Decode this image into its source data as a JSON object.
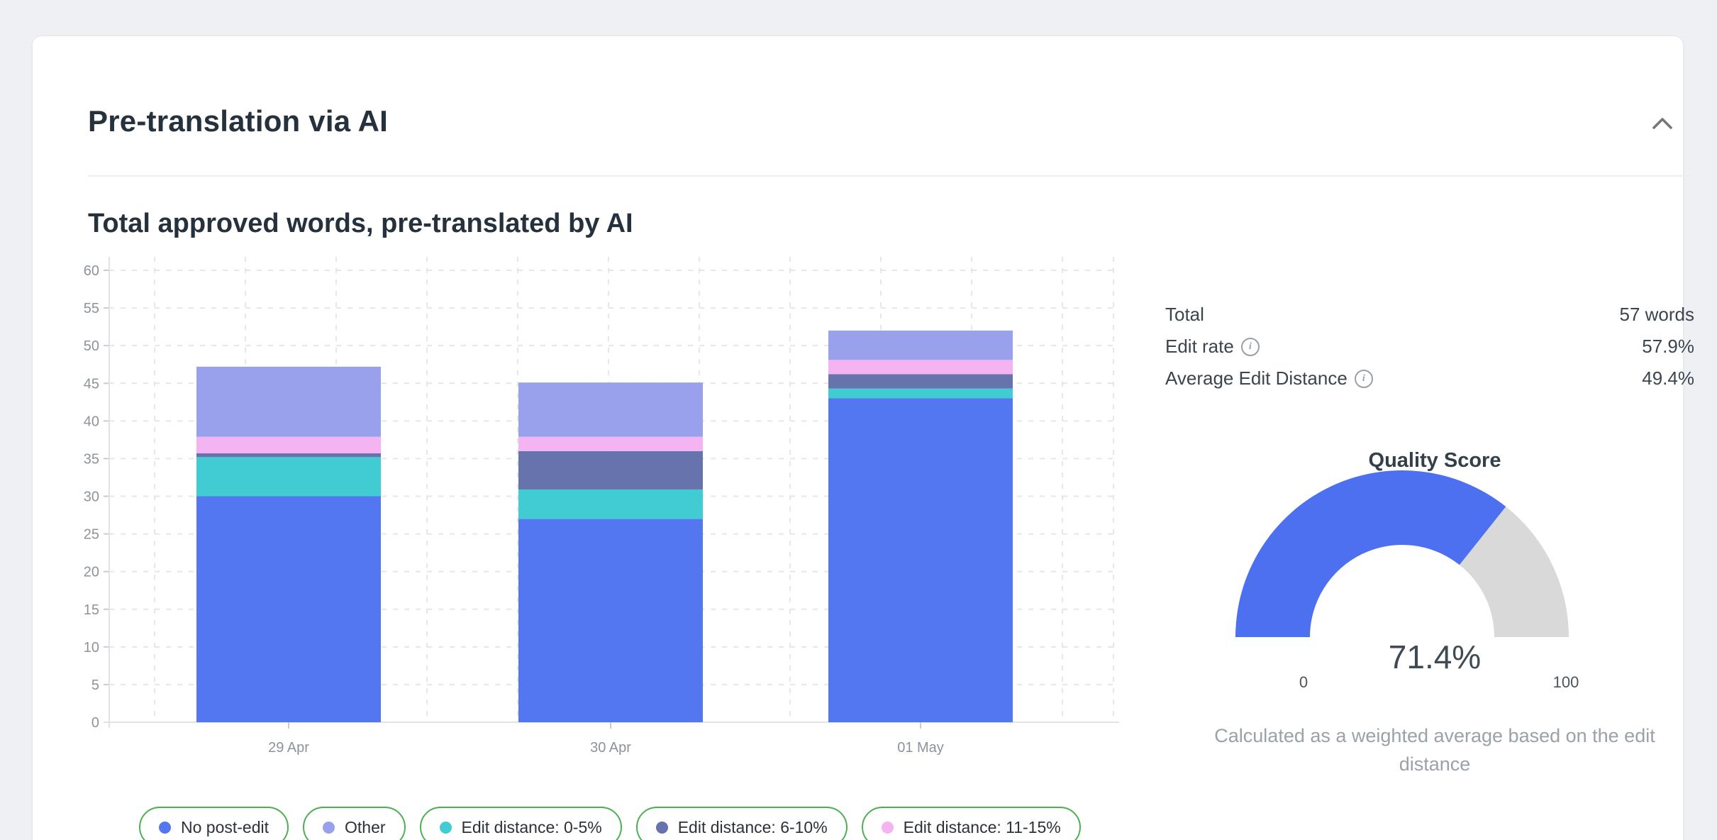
{
  "card": {
    "title": "Pre-translation via AI"
  },
  "section": {
    "title": "Total approved words, pre-translated by AI"
  },
  "chart_data": {
    "type": "bar",
    "stacked": true,
    "categories": [
      "29 Apr",
      "30 Apr",
      "01 May"
    ],
    "series": [
      {
        "name": "No post-edit",
        "color": "#5377f1",
        "values": [
          30.0,
          27.0,
          43.0
        ]
      },
      {
        "name": "Edit distance: 0-5%",
        "color": "#41cbd3",
        "values": [
          5.2,
          3.9,
          1.3
        ]
      },
      {
        "name": "Edit distance: 6-10%",
        "color": "#6673ac",
        "values": [
          0.5,
          5.1,
          1.9
        ]
      },
      {
        "name": "Edit distance: 11-15%",
        "color": "#f4b4f2",
        "values": [
          2.2,
          1.9,
          1.9
        ]
      },
      {
        "name": "Other",
        "color": "#9aa1ec",
        "values": [
          9.3,
          7.2,
          3.9
        ]
      }
    ],
    "bar_totals": [
      47.2,
      45.1,
      52.0
    ],
    "title": "Total approved words, pre-translated by AI",
    "xlabel": "",
    "ylabel": "",
    "y_ticks": [
      0,
      5,
      10,
      15,
      20,
      25,
      30,
      35,
      40,
      45,
      50,
      55,
      60
    ],
    "ylim": [
      0,
      62
    ],
    "grid": "dashed",
    "legend_position": "bottom"
  },
  "legend": {
    "border_color": "#4caf50",
    "items": [
      {
        "label": "No post-edit",
        "color": "#5377f1"
      },
      {
        "label": "Other",
        "color": "#9aa1ec"
      },
      {
        "label": "Edit distance: 0-5%",
        "color": "#41cbd3"
      },
      {
        "label": "Edit distance: 6-10%",
        "color": "#6673ac"
      },
      {
        "label": "Edit distance: 11-15%",
        "color": "#f4b4f2"
      }
    ]
  },
  "stats": {
    "rows": [
      {
        "label": "Total",
        "value": "57 words",
        "info": false
      },
      {
        "label": "Edit rate",
        "value": "57.9%",
        "info": true
      },
      {
        "label": "Average Edit Distance",
        "value": "49.4%",
        "info": true
      }
    ]
  },
  "gauge": {
    "title": "Quality Score",
    "value": 71.4,
    "value_label": "71.4%",
    "min_label": "0",
    "max_label": "100",
    "fill_color": "#4c70f0",
    "track_color": "#d9d9d9",
    "caption": "Calculated as a weighted average based on the edit distance"
  }
}
